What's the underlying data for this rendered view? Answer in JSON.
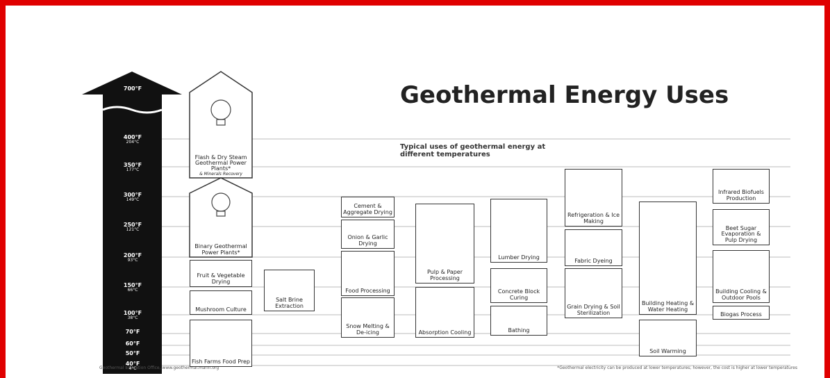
{
  "title": "Geothermal Energy Uses",
  "subtitle": "Typical uses of geothermal energy at different temperatures",
  "scale": [
    {
      "f": "700°F"
    },
    {
      "f": "400°F",
      "c": "204°C"
    },
    {
      "f": "350°F",
      "c": "177°C"
    },
    {
      "f": "300°F",
      "c": "149°C"
    },
    {
      "f": "250°F",
      "c": "121°C"
    },
    {
      "f": "200°F",
      "c": "93°C"
    },
    {
      "f": "150°F",
      "c": "66°C"
    },
    {
      "f": "100°F",
      "c": "38°C"
    },
    {
      "f": "70°F"
    },
    {
      "f": "60°F"
    },
    {
      "f": "50°F"
    },
    {
      "f": "40°F",
      "c": "4°C"
    }
  ],
  "uses": [
    {
      "label": "Flash & Dry Steam Geothermal Power Plants*",
      "note": "& Minerals Recovery"
    },
    {
      "label": "Binary Geothermal Power Plants*"
    },
    {
      "label": "Fruit & Vegetable Drying"
    },
    {
      "label": "Mushroom Culture"
    },
    {
      "label": "Fish Farms Food Prep"
    },
    {
      "label": "Salt Brine Extraction"
    },
    {
      "label": "Cement & Aggregate Drying"
    },
    {
      "label": "Onion & Garlic Drying"
    },
    {
      "label": "Food Processing"
    },
    {
      "label": "Snow Melting & De-icing"
    },
    {
      "label": "Pulp & Paper Processing"
    },
    {
      "label": "Absorption Cooling"
    },
    {
      "label": "Lumber Drying"
    },
    {
      "label": "Concrete Block Curing"
    },
    {
      "label": "Bathing"
    },
    {
      "label": "Refrigeration & Ice Making"
    },
    {
      "label": "Fabric Dyeing"
    },
    {
      "label": "Grain Drying & Soil Sterilization"
    },
    {
      "label": "Building Heating & Water Heating"
    },
    {
      "label": "Soil Warming"
    },
    {
      "label": "Infrared Biofuels Production"
    },
    {
      "label": "Beet Sugar Evaporation & Pulp Drying"
    },
    {
      "label": "Building Cooling & Outdoor Pools"
    },
    {
      "label": "Biogas Process"
    }
  ],
  "footnotes": {
    "left": "Geothermal Education Office, www.geothermal.marin.org",
    "right": "*Geothermal electricity can be produced at lower temperatures; however, the cost is higher at lower temperatures"
  }
}
